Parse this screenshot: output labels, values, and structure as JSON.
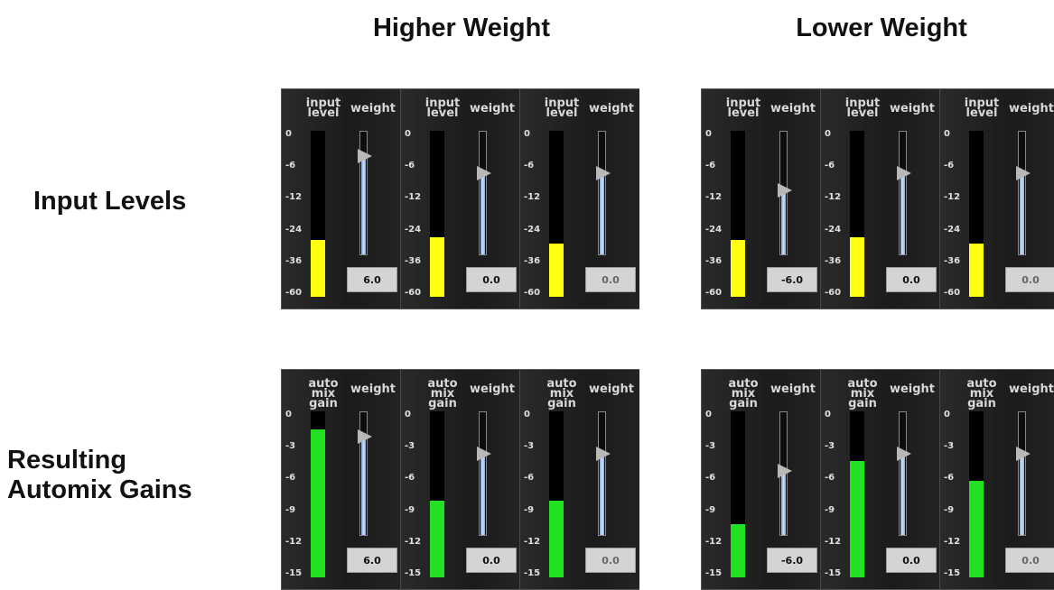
{
  "columns": [
    "Higher Weight",
    "Lower Weight"
  ],
  "rows": [
    "Input Levels",
    "Resulting\nAutomix Gains"
  ],
  "colors": {
    "input_meter": "#ffff10",
    "gain_meter": "#22e022"
  },
  "panels": [
    {
      "id": "higher-input",
      "meter_label": "input\nlevel",
      "weight_label": "weight",
      "scale": [
        "0",
        "-6",
        "-12",
        "-24",
        "-36",
        "-60"
      ],
      "meter_color": "input",
      "channels": [
        {
          "meter_fraction": 0.34,
          "weight_fraction": 0.8,
          "value": "6.0"
        },
        {
          "meter_fraction": 0.36,
          "weight_fraction": 0.66,
          "value": "0.0"
        },
        {
          "meter_fraction": 0.32,
          "weight_fraction": 0.66,
          "value": "0.0"
        }
      ]
    },
    {
      "id": "lower-input",
      "meter_label": "input\nlevel",
      "weight_label": "weight",
      "scale": [
        "0",
        "-6",
        "-12",
        "-24",
        "-36",
        "-60"
      ],
      "meter_color": "input",
      "channels": [
        {
          "meter_fraction": 0.34,
          "weight_fraction": 0.52,
          "value": "-6.0"
        },
        {
          "meter_fraction": 0.36,
          "weight_fraction": 0.66,
          "value": "0.0"
        },
        {
          "meter_fraction": 0.32,
          "weight_fraction": 0.66,
          "value": "0.0"
        }
      ]
    },
    {
      "id": "higher-gain",
      "meter_label": "auto mix\ngain",
      "weight_label": "weight",
      "scale": [
        "0",
        "-3",
        "-6",
        "-9",
        "-12",
        "-15"
      ],
      "meter_color": "gain",
      "channels": [
        {
          "meter_fraction": 0.89,
          "weight_fraction": 0.8,
          "value": "6.0"
        },
        {
          "meter_fraction": 0.46,
          "weight_fraction": 0.66,
          "value": "0.0"
        },
        {
          "meter_fraction": 0.46,
          "weight_fraction": 0.66,
          "value": "0.0"
        }
      ]
    },
    {
      "id": "lower-gain",
      "meter_label": "auto mix\ngain",
      "weight_label": "weight",
      "scale": [
        "0",
        "-3",
        "-6",
        "-9",
        "-12",
        "-15"
      ],
      "meter_color": "gain",
      "channels": [
        {
          "meter_fraction": 0.32,
          "weight_fraction": 0.52,
          "value": "-6.0"
        },
        {
          "meter_fraction": 0.7,
          "weight_fraction": 0.66,
          "value": "0.0"
        },
        {
          "meter_fraction": 0.58,
          "weight_fraction": 0.66,
          "value": "0.0"
        }
      ]
    }
  ]
}
